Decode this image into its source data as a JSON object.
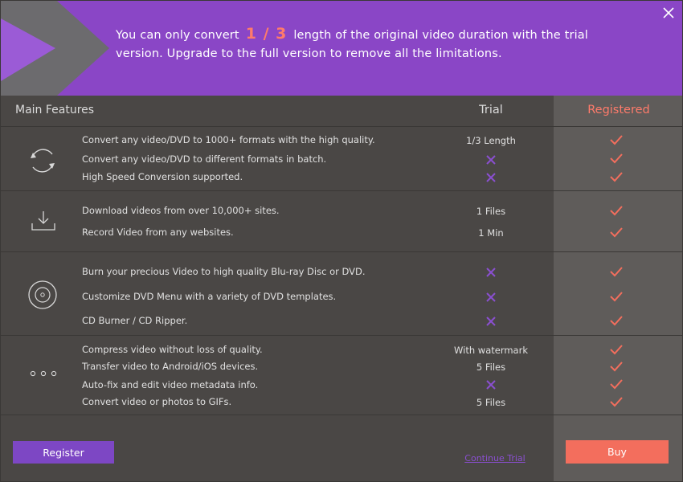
{
  "banner": {
    "text_before": "You can only convert",
    "fraction": "1 / 3",
    "text_after": "length of the original video duration with the trial",
    "line2": "version. Upgrade to the full version to remove all the limitations."
  },
  "header": {
    "main": "Main Features",
    "trial": "Trial",
    "registered": "Registered"
  },
  "sections": [
    {
      "icon": "convert-icon",
      "rows": [
        {
          "feature": "Convert any video/DVD to 1000+ formats with the high quality.",
          "trial": "1/3 Length"
        },
        {
          "feature": "Convert any video/DVD to different formats in batch.",
          "trial": "x"
        },
        {
          "feature": "High Speed Conversion supported.",
          "trial": "x"
        }
      ]
    },
    {
      "icon": "download-icon",
      "rows": [
        {
          "feature": "Download videos from over 10,000+ sites.",
          "trial": "1 Files"
        },
        {
          "feature": "Record Video from any websites.",
          "trial": "1 Min"
        }
      ]
    },
    {
      "icon": "disc-icon",
      "rows": [
        {
          "feature": "Burn your precious Video to high quality Blu-ray Disc or DVD.",
          "trial": "x"
        },
        {
          "feature": "Customize DVD Menu with a variety of DVD templates.",
          "trial": "x"
        },
        {
          "feature": "CD Burner / CD Ripper.",
          "trial": "x"
        }
      ]
    },
    {
      "icon": "more-icon",
      "rows": [
        {
          "feature": "Compress video without loss of quality.",
          "trial": "With watermark"
        },
        {
          "feature": "Transfer video to Android/iOS devices.",
          "trial": "5 Files"
        },
        {
          "feature": "Auto-fix and edit video metadata info.",
          "trial": "x"
        },
        {
          "feature": "Convert video or photos to GIFs.",
          "trial": "5 Files"
        }
      ]
    }
  ],
  "footer": {
    "register": "Register",
    "continue_trial": "Continue Trial",
    "buy": "Buy"
  },
  "colors": {
    "banner": "#8a46c6",
    "accent": "#f36e5d",
    "purple_x": "#8a4fd0"
  }
}
